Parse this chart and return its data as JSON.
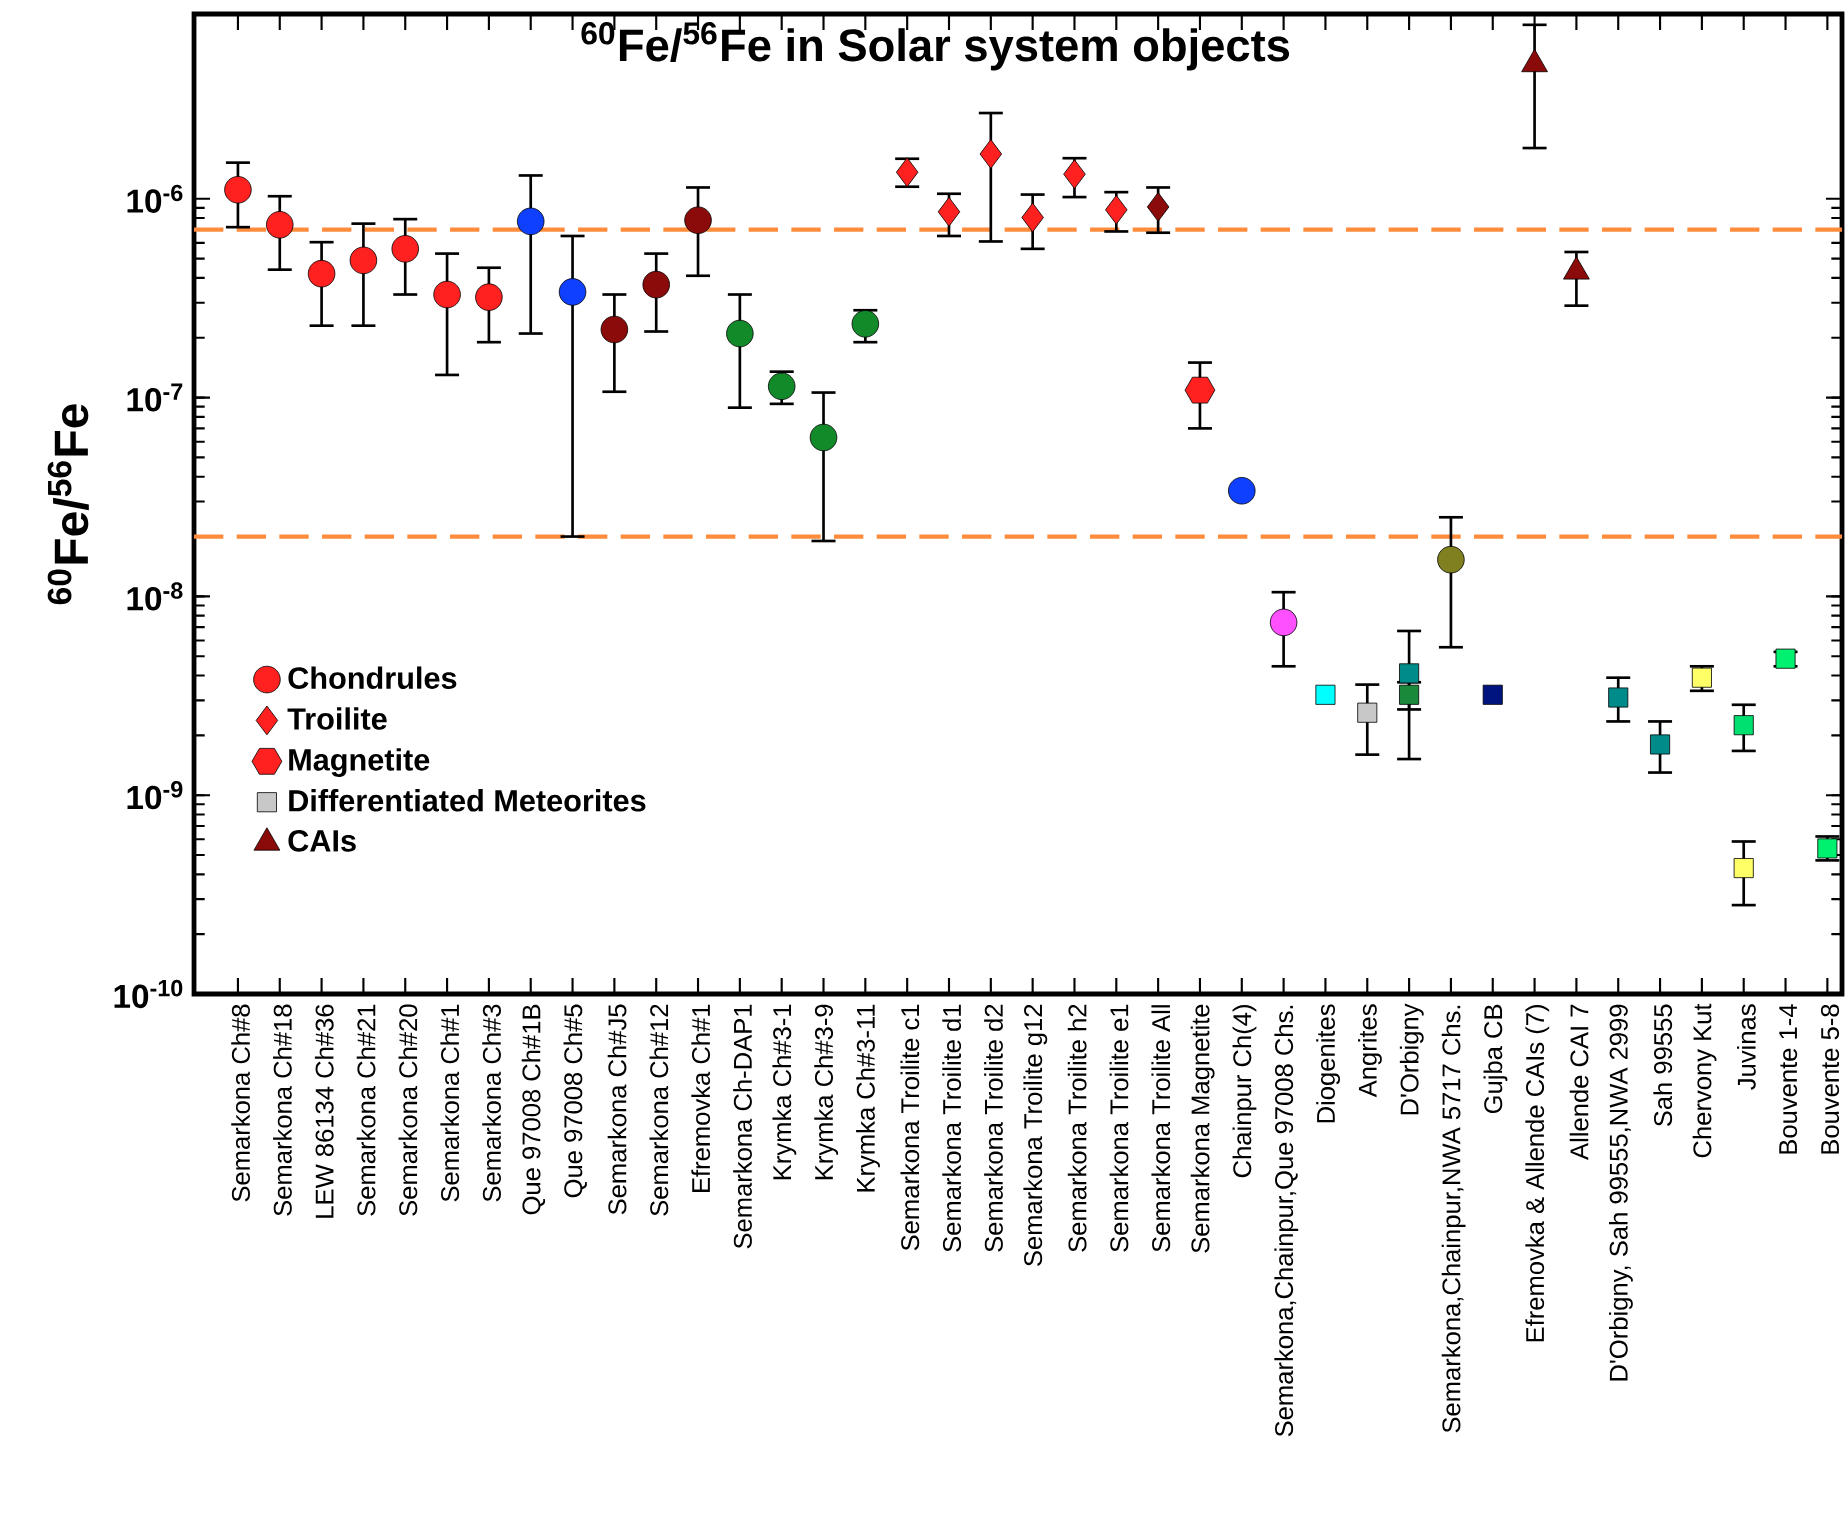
{
  "chart_data": {
    "type": "scatter",
    "title": "$^{60}$Fe/$^{56}$Fe in Solar system objects",
    "ylabel": "$^{60}$Fe/$^{56}$Fe",
    "categories": [
      "Semarkona Ch#8",
      "Semarkona Ch#18",
      "LEW 86134 Ch#36",
      "Semarkona Ch#21",
      "Semarkona Ch#20",
      "Semarkona Ch#1",
      "Semarkona Ch#3",
      "Que 97008 Ch#1B",
      "Que 97008 Ch#5",
      "Semarkona Ch#J5",
      "Semarkona Ch#12",
      "Efremovka Ch#1",
      "Semarkona Ch-DAP1",
      "Krymka Ch#3-1",
      "Krymka Ch#3-9",
      "Krymka Ch#3-11",
      "Semarkona Troilite c1",
      "Semarkona Troilite d1",
      "Semarkona Troilite d2",
      "Semarkona Troilite g12",
      "Semarkona Troilite h2",
      "Semarkona Troilite e1",
      "Semarkona Troilite All",
      "Semarkona Magnetite",
      "Chainpur Ch(4)",
      "Semarkona,Chainpur,Que 97008 Chs.",
      "Diogenites",
      "Angrites",
      "D'Orbigny",
      "Semarkona,Chainpur,NWA 5717 Chs.",
      "Gujba CB",
      "Efremovka & Allende CAIs (7)",
      "Allende CAI 7",
      "D'Orbigny, Sah 99555,NWA 2999",
      "Sah 99555",
      "Chervony Kut",
      "Juvinas",
      "Bouvente 1-4",
      "Bouvente 5-8"
    ],
    "log": "y",
    "ylim": [
      1e-10,
      8.5e-06
    ],
    "yticks": [
      {
        "value": 1e-10,
        "label": "10$^{-10}$"
      },
      {
        "value": 1e-09,
        "label": "10$^{-9}$"
      },
      {
        "value": 1e-08,
        "label": "10$^{-8}$"
      },
      {
        "value": 1e-07,
        "label": "10$^{-7}$"
      },
      {
        "value": 1e-06,
        "label": "10$^{-6}$"
      }
    ],
    "legend": "bottom left",
    "ref_lines": [
      {
        "axis": "y",
        "value": 7e-07,
        "color": "#ff8c3c",
        "line_style": "dashed"
      },
      {
        "axis": "y",
        "value": 2e-08,
        "color": "#ff8c3c",
        "line_style": "dashed"
      }
    ],
    "series": [
      {
        "name": "Chondrules",
        "marker": "circle",
        "color": "#ff2020",
        "colors": [
          "#ff2020",
          "#ff2020",
          "#ff2020",
          "#ff2020",
          "#ff2020",
          "#ff2020",
          "#ff2020",
          "#1040ff",
          "#1040ff",
          "#8b0a0a",
          "#8b0a0a",
          "#8b0a0a",
          "#128a2a",
          "#128a2a",
          "#128a2a",
          "#128a2a",
          null,
          null,
          null,
          null,
          null,
          null,
          null,
          null,
          "#1040ff",
          "#ff50ff",
          null,
          null,
          null,
          "#808020",
          null,
          null,
          null,
          null,
          null,
          null,
          null,
          null,
          null
        ],
        "values": [
          1.11e-06,
          7.4e-07,
          4.2e-07,
          4.9e-07,
          5.6e-07,
          3.3e-07,
          3.2e-07,
          7.7e-07,
          3.4e-07,
          2.2e-07,
          3.7e-07,
          7.8e-07,
          2.1e-07,
          1.14e-07,
          6.3e-08,
          2.35e-07,
          null,
          null,
          null,
          null,
          null,
          null,
          null,
          null,
          3.4e-08,
          7.4e-09,
          null,
          null,
          null,
          1.53e-08,
          null,
          null,
          null,
          null,
          null,
          null,
          null,
          null,
          null
        ],
        "errors": [
          [
            7.2e-07,
            1.52e-06
          ],
          [
            4.4e-07,
            1.03e-06
          ],
          [
            2.3e-07,
            6.05e-07
          ],
          [
            2.3e-07,
            7.5e-07
          ],
          [
            3.3e-07,
            7.9e-07
          ],
          [
            1.3e-07,
            5.3e-07
          ],
          [
            1.9e-07,
            4.5e-07
          ],
          [
            2.1e-07,
            1.31e-06
          ],
          [
            2e-08,
            6.5e-07
          ],
          [
            1.07e-07,
            3.3e-07
          ],
          [
            2.15e-07,
            5.3e-07
          ],
          [
            4.1e-07,
            1.14e-06
          ],
          [
            8.9e-08,
            3.3e-07
          ],
          [
            9.3e-08,
            1.35e-07
          ],
          [
            1.9e-08,
            1.06e-07
          ],
          [
            1.9e-07,
            2.75e-07
          ],
          null,
          null,
          null,
          null,
          null,
          null,
          null,
          null,
          null,
          [
            4.45e-09,
            1.05e-08
          ],
          null,
          null,
          null,
          [
            5.55e-09,
            2.5e-08
          ],
          null,
          null,
          null,
          null,
          null,
          null,
          null,
          null,
          null
        ]
      },
      {
        "name": "Troilite",
        "marker": "diamond",
        "color": "#ff2020",
        "colors": [
          null,
          null,
          null,
          null,
          null,
          null,
          null,
          null,
          null,
          null,
          null,
          null,
          null,
          null,
          null,
          null,
          "#ff2020",
          "#ff2020",
          "#ff2020",
          "#ff2020",
          "#ff2020",
          "#ff2020",
          "#8b0a0a",
          null,
          null,
          null,
          null,
          null,
          null,
          null,
          null,
          null,
          null,
          null,
          null,
          null,
          null,
          null,
          null
        ],
        "values": [
          null,
          null,
          null,
          null,
          null,
          null,
          null,
          null,
          null,
          null,
          null,
          null,
          null,
          null,
          null,
          null,
          1.36e-06,
          8.6e-07,
          1.68e-06,
          8.05e-07,
          1.33e-06,
          8.8e-07,
          9.1e-07,
          null,
          null,
          null,
          null,
          null,
          null,
          null,
          null,
          null,
          null,
          null,
          null,
          null,
          null,
          null,
          null
        ],
        "errors": [
          null,
          null,
          null,
          null,
          null,
          null,
          null,
          null,
          null,
          null,
          null,
          null,
          null,
          null,
          null,
          null,
          [
            1.15e-06,
            1.59e-06
          ],
          [
            6.5e-07,
            1.06e-06
          ],
          [
            6.1e-07,
            2.7e-06
          ],
          [
            5.6e-07,
            1.05e-06
          ],
          [
            1.02e-06,
            1.6e-06
          ],
          [
            6.85e-07,
            1.08e-06
          ],
          [
            6.75e-07,
            1.14e-06
          ],
          null,
          null,
          null,
          null,
          null,
          null,
          null,
          null,
          null,
          null,
          null,
          null,
          null,
          null,
          null,
          null
        ]
      },
      {
        "name": "Magnetite",
        "color": "#ff2020",
        "values": [
          null,
          null,
          null,
          null,
          null,
          null,
          null,
          null,
          null,
          null,
          null,
          null,
          null,
          null,
          null,
          null,
          null,
          null,
          null,
          null,
          null,
          null,
          null,
          1.09e-07,
          null,
          null,
          null,
          null,
          null,
          null,
          null,
          null,
          null,
          null,
          null,
          null,
          null,
          null,
          null
        ],
        "errors": [
          null,
          null,
          null,
          null,
          null,
          null,
          null,
          null,
          null,
          null,
          null,
          null,
          null,
          null,
          null,
          null,
          null,
          null,
          null,
          null,
          null,
          null,
          null,
          [
            7e-08,
            1.5e-07
          ],
          null,
          null,
          null,
          null,
          null,
          null,
          null,
          null,
          null,
          null,
          null,
          null,
          null,
          null,
          null
        ]
      },
      {
        "name": "Differentiated Meteorites",
        "marker": "square",
        "color": "#c8c8c8",
        "colors": [
          null,
          null,
          null,
          null,
          null,
          null,
          null,
          null,
          null,
          null,
          null,
          null,
          null,
          null,
          null,
          null,
          null,
          null,
          null,
          null,
          null,
          null,
          null,
          null,
          null,
          null,
          "#00ffff",
          "#c8c8c8",
          "#008b8b",
          null,
          "#00147f",
          null,
          null,
          "#008b8b",
          "#008b8b",
          "#ffff66",
          "#00e070",
          "#00f070",
          "#00f070"
        ],
        "values": [
          null,
          null,
          null,
          null,
          null,
          null,
          null,
          null,
          null,
          null,
          null,
          null,
          null,
          null,
          null,
          null,
          null,
          null,
          null,
          null,
          null,
          null,
          null,
          null,
          null,
          null,
          3.2e-09,
          2.6e-09,
          4.1e-09,
          null,
          3.2e-09,
          null,
          null,
          3.1e-09,
          1.8e-09,
          3.9e-09,
          2.25e-09,
          4.86e-09,
          5.4e-10
        ],
        "errors": [
          null,
          null,
          null,
          null,
          null,
          null,
          null,
          null,
          null,
          null,
          null,
          null,
          null,
          null,
          null,
          null,
          null,
          null,
          null,
          null,
          null,
          null,
          null,
          null,
          null,
          null,
          null,
          [
            1.6e-09,
            3.6e-09
          ],
          [
            1.52e-09,
            6.7e-09
          ],
          null,
          null,
          null,
          null,
          [
            2.35e-09,
            3.9e-09
          ],
          [
            1.3e-09,
            2.35e-09
          ],
          [
            3.35e-09,
            4.45e-09
          ],
          [
            1.67e-09,
            2.85e-09
          ],
          [
            4.45e-09,
            5.26e-09
          ],
          [
            4.7e-10,
            6.2e-10
          ]
        ]
      },
      {
        "marker": "square",
        "colors": [
          null,
          null,
          null,
          null,
          null,
          null,
          null,
          null,
          null,
          null,
          null,
          null,
          null,
          null,
          null,
          null,
          null,
          null,
          null,
          null,
          null,
          null,
          null,
          null,
          null,
          null,
          null,
          null,
          "#1a8a3a",
          null,
          null,
          null,
          null,
          null,
          null,
          null,
          "#ffff66",
          null,
          null
        ],
        "values": [
          null,
          null,
          null,
          null,
          null,
          null,
          null,
          null,
          null,
          null,
          null,
          null,
          null,
          null,
          null,
          null,
          null,
          null,
          null,
          null,
          null,
          null,
          null,
          null,
          null,
          null,
          null,
          null,
          3.2e-09,
          null,
          null,
          null,
          null,
          null,
          null,
          null,
          4.3e-10,
          null,
          null
        ],
        "errors": [
          null,
          null,
          null,
          null,
          null,
          null,
          null,
          null,
          null,
          null,
          null,
          null,
          null,
          null,
          null,
          null,
          null,
          null,
          null,
          null,
          null,
          null,
          null,
          null,
          null,
          null,
          null,
          null,
          [
            2.7e-09,
            3.7e-09
          ],
          null,
          null,
          null,
          null,
          null,
          null,
          null,
          [
            2.8e-10,
            5.85e-10
          ],
          null,
          null
        ]
      },
      {
        "name": "CAIs",
        "marker": "triangle",
        "color": "#8b0a0a",
        "values": [
          null,
          null,
          null,
          null,
          null,
          null,
          null,
          null,
          null,
          null,
          null,
          null,
          null,
          null,
          null,
          null,
          null,
          null,
          null,
          null,
          null,
          null,
          null,
          null,
          null,
          null,
          null,
          null,
          null,
          null,
          null,
          4.75e-06,
          4.3e-07,
          null,
          null,
          null,
          null,
          null,
          null
        ],
        "errors": [
          null,
          null,
          null,
          null,
          null,
          null,
          null,
          null,
          null,
          null,
          null,
          null,
          null,
          null,
          null,
          null,
          null,
          null,
          null,
          null,
          null,
          null,
          null,
          null,
          null,
          null,
          null,
          null,
          null,
          null,
          null,
          [
            1.8e-06,
            7.5e-06
          ],
          [
            2.9e-07,
            5.4e-07
          ],
          null,
          null,
          null,
          null,
          null,
          null
        ]
      }
    ]
  }
}
